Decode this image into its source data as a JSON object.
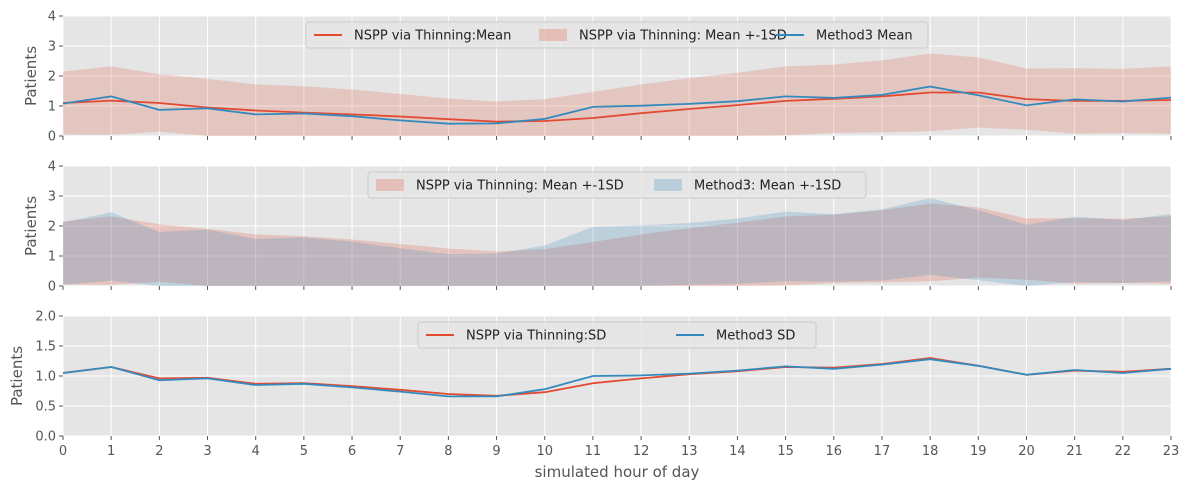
{
  "chart_data": {
    "type": "line",
    "xlabel": "simulated hour of day",
    "x": [
      0,
      1,
      2,
      3,
      4,
      5,
      6,
      7,
      8,
      9,
      10,
      11,
      12,
      13,
      14,
      15,
      16,
      17,
      18,
      19,
      20,
      21,
      22,
      23
    ],
    "colors": {
      "nspp": "#E24A33",
      "method3": "#348ABD",
      "panel_bg": "#E5E5E5",
      "grid": "#FFFFFF"
    },
    "panels": [
      {
        "ylabel": "Patients",
        "ylim": [
          0,
          4
        ],
        "yticks": [
          "0",
          "1",
          "2",
          "3",
          "4"
        ],
        "yticks_values": [
          0,
          1,
          2,
          3,
          4
        ],
        "legend": [
          "NSPP via Thinning:Mean",
          "NSPP via Thinning: Mean +-1SD",
          "Method3 Mean"
        ],
        "series": [
          {
            "name": "NSPP via Thinning:Mean",
            "kind": "line",
            "color_key": "nspp",
            "values": [
              1.1,
              1.18,
              1.1,
              0.95,
              0.85,
              0.78,
              0.72,
              0.65,
              0.56,
              0.48,
              0.5,
              0.6,
              0.76,
              0.9,
              1.03,
              1.17,
              1.24,
              1.32,
              1.45,
              1.45,
              1.23,
              1.17,
              1.17,
              1.2
            ]
          },
          {
            "name": "NSPP via Thinning: Mean +-1SD",
            "kind": "band",
            "color_key": "nspp",
            "upper": [
              2.15,
              2.32,
              2.06,
              1.91,
              1.72,
              1.66,
              1.55,
              1.4,
              1.25,
              1.15,
              1.23,
              1.47,
              1.72,
              1.93,
              2.11,
              2.32,
              2.38,
              2.52,
              2.75,
              2.62,
              2.25,
              2.26,
              2.24,
              2.32
            ],
            "lower": [
              0.05,
              0.04,
              0.14,
              0.0,
              0.0,
              0.0,
              0.0,
              0.0,
              0.0,
              0.0,
              0.0,
              0.0,
              0.0,
              0.0,
              0.0,
              0.02,
              0.1,
              0.12,
              0.16,
              0.28,
              0.21,
              0.08,
              0.1,
              0.08
            ]
          },
          {
            "name": "Method3 Mean",
            "kind": "line",
            "color_key": "method3",
            "values": [
              1.08,
              1.32,
              0.87,
              0.92,
              0.72,
              0.75,
              0.66,
              0.52,
              0.41,
              0.42,
              0.57,
              0.97,
              1.01,
              1.07,
              1.16,
              1.32,
              1.27,
              1.37,
              1.65,
              1.36,
              1.02,
              1.22,
              1.15,
              1.28
            ]
          }
        ]
      },
      {
        "ylabel": "Patients",
        "ylim": [
          0,
          4
        ],
        "yticks": [
          "0",
          "1",
          "2",
          "3",
          "4"
        ],
        "yticks_values": [
          0,
          1,
          2,
          3,
          4
        ],
        "legend": [
          "NSPP via Thinning: Mean +-1SD",
          "Method3: Mean +-1SD"
        ],
        "series": [
          {
            "name": "NSPP via Thinning: Mean +-1SD",
            "kind": "band",
            "color_key": "nspp",
            "upper": [
              2.15,
              2.32,
              2.06,
              1.91,
              1.72,
              1.66,
              1.55,
              1.4,
              1.25,
              1.15,
              1.23,
              1.47,
              1.72,
              1.93,
              2.11,
              2.32,
              2.38,
              2.52,
              2.75,
              2.62,
              2.25,
              2.26,
              2.24,
              2.32
            ],
            "lower": [
              0.05,
              0.04,
              0.14,
              0.0,
              0.0,
              0.0,
              0.0,
              0.0,
              0.0,
              0.0,
              0.0,
              0.0,
              0.0,
              0.0,
              0.0,
              0.02,
              0.1,
              0.12,
              0.16,
              0.28,
              0.21,
              0.08,
              0.1,
              0.08
            ]
          },
          {
            "name": "Method3: Mean +-1SD",
            "kind": "band",
            "color_key": "method3",
            "upper": [
              2.12,
              2.46,
              1.8,
              1.88,
              1.57,
              1.62,
              1.48,
              1.26,
              1.06,
              1.08,
              1.35,
              1.97,
              2.02,
              2.1,
              2.25,
              2.48,
              2.39,
              2.56,
              2.93,
              2.53,
              2.04,
              2.31,
              2.2,
              2.4
            ],
            "lower": [
              0.04,
              0.18,
              0.0,
              0.0,
              0.0,
              0.0,
              0.0,
              0.0,
              0.0,
              0.0,
              0.0,
              0.0,
              0.0,
              0.04,
              0.07,
              0.16,
              0.15,
              0.18,
              0.37,
              0.19,
              0.0,
              0.13,
              0.1,
              0.16
            ]
          }
        ]
      },
      {
        "ylabel": "Patients",
        "ylim": [
          0,
          2
        ],
        "yticks": [
          "0.0",
          "0.5",
          "1.0",
          "1.5",
          "2.0"
        ],
        "yticks_values": [
          0,
          0.5,
          1.0,
          1.5,
          2.0
        ],
        "legend": [
          "NSPP via Thinning:SD",
          "Method3 SD"
        ],
        "series": [
          {
            "name": "NSPP via Thinning:SD",
            "kind": "line",
            "color_key": "nspp",
            "values": [
              1.05,
              1.15,
              0.96,
              0.97,
              0.87,
              0.88,
              0.83,
              0.77,
              0.7,
              0.67,
              0.73,
              0.88,
              0.96,
              1.03,
              1.08,
              1.15,
              1.14,
              1.2,
              1.3,
              1.17,
              1.02,
              1.09,
              1.07,
              1.12
            ]
          },
          {
            "name": "Method3 SD",
            "kind": "line",
            "color_key": "method3",
            "values": [
              1.05,
              1.15,
              0.93,
              0.96,
              0.85,
              0.87,
              0.81,
              0.74,
              0.66,
              0.66,
              0.78,
              1.0,
              1.01,
              1.04,
              1.09,
              1.16,
              1.12,
              1.19,
              1.28,
              1.17,
              1.02,
              1.1,
              1.05,
              1.12
            ]
          }
        ]
      }
    ]
  }
}
